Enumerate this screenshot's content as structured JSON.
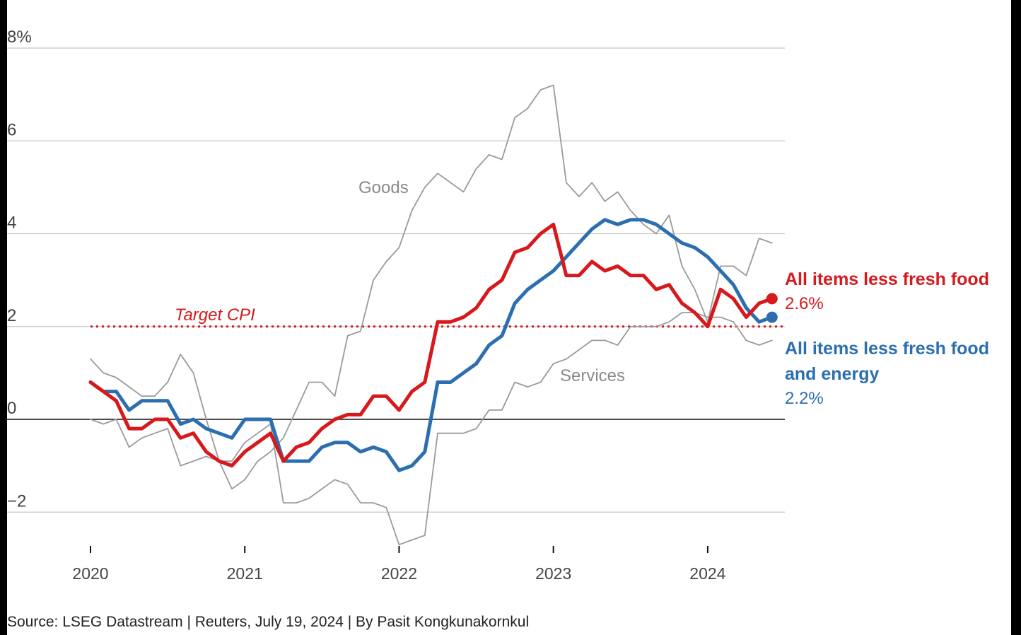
{
  "chart_data": {
    "type": "line",
    "xlim": [
      2020,
      2024.5
    ],
    "ylim": [
      -2.6,
      8
    ],
    "y_ticks": [
      {
        "value": 8,
        "label": "8%"
      },
      {
        "value": 6,
        "label": "6"
      },
      {
        "value": 4,
        "label": "4"
      },
      {
        "value": 2,
        "label": "2"
      },
      {
        "value": 0,
        "label": "0"
      },
      {
        "value": -2,
        "label": "−2"
      }
    ],
    "x_ticks": [
      {
        "value": 2020,
        "label": "2020"
      },
      {
        "value": 2021,
        "label": "2021"
      },
      {
        "value": 2022,
        "label": "2022"
      },
      {
        "value": 2023,
        "label": "2023"
      },
      {
        "value": 2024,
        "label": "2024"
      }
    ],
    "grid": true,
    "target": {
      "value": 2,
      "label": "Target CPI",
      "color": "#d7191c"
    },
    "x_start": "2020-01",
    "x_step_months": 1,
    "series": [
      {
        "name": "All items less fresh food",
        "color": "#d7191c",
        "latest_label": "2.6%",
        "values": [
          0.8,
          0.6,
          0.4,
          -0.2,
          -0.2,
          0.0,
          0.0,
          -0.4,
          -0.3,
          -0.7,
          -0.9,
          -1.0,
          -0.7,
          -0.5,
          -0.3,
          -0.9,
          -0.6,
          -0.5,
          -0.2,
          0.0,
          0.1,
          0.1,
          0.5,
          0.5,
          0.2,
          0.6,
          0.8,
          2.1,
          2.1,
          2.2,
          2.4,
          2.8,
          3.0,
          3.6,
          3.7,
          4.0,
          4.2,
          3.1,
          3.1,
          3.4,
          3.2,
          3.3,
          3.1,
          3.1,
          2.8,
          2.9,
          2.5,
          2.3,
          2.0,
          2.8,
          2.6,
          2.2,
          2.5,
          2.6
        ]
      },
      {
        "name": "All items less fresh food and energy",
        "color": "#2b6fb0",
        "latest_label": "2.2%",
        "values": [
          0.8,
          0.6,
          0.6,
          0.2,
          0.4,
          0.4,
          0.4,
          -0.1,
          0.0,
          -0.2,
          -0.3,
          -0.4,
          0.0,
          0.0,
          0.0,
          -0.9,
          -0.9,
          -0.9,
          -0.6,
          -0.5,
          -0.5,
          -0.7,
          -0.6,
          -0.7,
          -1.1,
          -1.0,
          -0.7,
          0.8,
          0.8,
          1.0,
          1.2,
          1.6,
          1.8,
          2.5,
          2.8,
          3.0,
          3.2,
          3.5,
          3.8,
          4.1,
          4.3,
          4.2,
          4.3,
          4.3,
          4.2,
          4.0,
          3.8,
          3.7,
          3.5,
          3.2,
          2.9,
          2.4,
          2.1,
          2.2
        ]
      },
      {
        "name": "Goods",
        "color": "#9a9a9a",
        "values": [
          1.3,
          1.0,
          0.9,
          0.7,
          0.5,
          0.5,
          0.8,
          1.4,
          1.0,
          0.0,
          -0.9,
          -1.5,
          -1.3,
          -0.9,
          -0.7,
          -0.4,
          0.2,
          0.8,
          0.8,
          0.5,
          1.8,
          1.9,
          3.0,
          3.4,
          3.7,
          4.5,
          5.0,
          5.3,
          5.1,
          4.9,
          5.4,
          5.7,
          5.6,
          6.5,
          6.7,
          7.1,
          7.2,
          5.1,
          4.8,
          5.1,
          4.7,
          4.9,
          4.5,
          4.2,
          4.0,
          4.4,
          3.3,
          2.8,
          2.1,
          3.3,
          3.3,
          3.1,
          3.9,
          3.8
        ]
      },
      {
        "name": "Services",
        "color": "#9a9a9a",
        "values": [
          0.0,
          -0.1,
          0.0,
          -0.6,
          -0.4,
          -0.3,
          -0.2,
          -1.0,
          -0.9,
          -0.8,
          -0.9,
          -0.9,
          -0.5,
          -0.3,
          -0.1,
          -1.8,
          -1.8,
          -1.7,
          -1.5,
          -1.3,
          -1.4,
          -1.8,
          -1.8,
          -1.9,
          -2.7,
          -2.6,
          -2.5,
          -0.3,
          -0.3,
          -0.3,
          -0.2,
          0.2,
          0.2,
          0.8,
          0.7,
          0.8,
          1.2,
          1.3,
          1.5,
          1.7,
          1.7,
          1.6,
          2.0,
          2.0,
          2.0,
          2.1,
          2.3,
          2.3,
          2.2,
          2.2,
          2.1,
          1.7,
          1.6,
          1.7
        ]
      }
    ]
  },
  "labels": {
    "goods": "Goods",
    "services": "Services",
    "target": "Target CPI",
    "red_title": "All items less fresh food",
    "red_value": "2.6%",
    "blue_title_1": "All items less fresh food",
    "blue_title_2": "and energy",
    "blue_value": "2.2%"
  },
  "source": "Source: LSEG Datastream | Reuters, July 19, 2024 | By Pasit Kongkunakornkul"
}
